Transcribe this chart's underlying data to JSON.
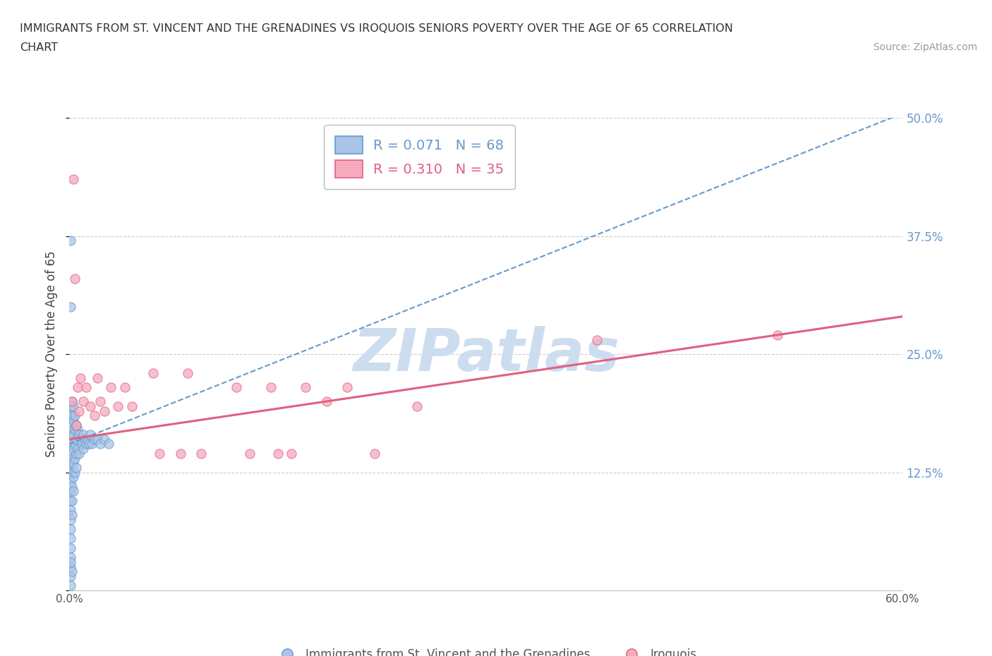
{
  "title_line1": "IMMIGRANTS FROM ST. VINCENT AND THE GRENADINES VS IROQUOIS SENIORS POVERTY OVER THE AGE OF 65 CORRELATION",
  "title_line2": "CHART",
  "source_text": "Source: ZipAtlas.com",
  "ylabel": "Seniors Poverty Over the Age of 65",
  "xmin": 0.0,
  "xmax": 0.6,
  "ymin": 0.0,
  "ymax": 0.5,
  "xticks": [
    0.0,
    0.1,
    0.2,
    0.3,
    0.4,
    0.5,
    0.6
  ],
  "xticklabels": [
    "0.0%",
    "",
    "",
    "",
    "",
    "",
    "60.0%"
  ],
  "yticks": [
    0.0,
    0.125,
    0.25,
    0.375,
    0.5
  ],
  "yticklabels_right": [
    "",
    "12.5%",
    "25.0%",
    "37.5%",
    "50.0%"
  ],
  "blue_color": "#aac4e8",
  "pink_color": "#f5aabe",
  "blue_edge_color": "#6699cc",
  "pink_edge_color": "#e06080",
  "blue_line_color": "#6699cc",
  "pink_line_color": "#e06080",
  "grid_color": "#cccccc",
  "watermark_color": "#ccddef",
  "legend_blue_R": "0.071",
  "legend_blue_N": "68",
  "legend_pink_R": "0.310",
  "legend_pink_N": "35",
  "blue_label": "Immigrants from St. Vincent and the Grenadines",
  "pink_label": "Iroquois",
  "blue_scatter_x": [
    0.001,
    0.001,
    0.001,
    0.001,
    0.001,
    0.001,
    0.001,
    0.001,
    0.001,
    0.001,
    0.001,
    0.001,
    0.001,
    0.001,
    0.001,
    0.001,
    0.001,
    0.001,
    0.001,
    0.001,
    0.002,
    0.002,
    0.002,
    0.002,
    0.002,
    0.002,
    0.002,
    0.002,
    0.002,
    0.003,
    0.003,
    0.003,
    0.003,
    0.003,
    0.003,
    0.003,
    0.004,
    0.004,
    0.004,
    0.004,
    0.004,
    0.005,
    0.005,
    0.005,
    0.005,
    0.006,
    0.006,
    0.007,
    0.007,
    0.008,
    0.009,
    0.01,
    0.01,
    0.011,
    0.012,
    0.013,
    0.014,
    0.015,
    0.016,
    0.018,
    0.02,
    0.022,
    0.025,
    0.028,
    0.001,
    0.001,
    0.001,
    0.002
  ],
  "blue_scatter_y": [
    0.195,
    0.185,
    0.175,
    0.165,
    0.155,
    0.145,
    0.135,
    0.125,
    0.115,
    0.105,
    0.095,
    0.085,
    0.075,
    0.065,
    0.055,
    0.045,
    0.035,
    0.025,
    0.015,
    0.005,
    0.2,
    0.185,
    0.17,
    0.155,
    0.14,
    0.125,
    0.11,
    0.095,
    0.08,
    0.195,
    0.18,
    0.165,
    0.15,
    0.135,
    0.12,
    0.105,
    0.185,
    0.17,
    0.155,
    0.14,
    0.125,
    0.175,
    0.16,
    0.145,
    0.13,
    0.17,
    0.15,
    0.165,
    0.145,
    0.16,
    0.155,
    0.165,
    0.15,
    0.16,
    0.155,
    0.16,
    0.155,
    0.165,
    0.155,
    0.16,
    0.16,
    0.155,
    0.16,
    0.155,
    0.37,
    0.3,
    0.03,
    0.02
  ],
  "pink_scatter_x": [
    0.002,
    0.003,
    0.004,
    0.005,
    0.006,
    0.007,
    0.008,
    0.01,
    0.012,
    0.015,
    0.018,
    0.02,
    0.022,
    0.025,
    0.03,
    0.035,
    0.04,
    0.045,
    0.06,
    0.065,
    0.08,
    0.085,
    0.095,
    0.12,
    0.13,
    0.145,
    0.15,
    0.16,
    0.17,
    0.185,
    0.2,
    0.22,
    0.25,
    0.38,
    0.51
  ],
  "pink_scatter_y": [
    0.2,
    0.435,
    0.33,
    0.175,
    0.215,
    0.19,
    0.225,
    0.2,
    0.215,
    0.195,
    0.185,
    0.225,
    0.2,
    0.19,
    0.215,
    0.195,
    0.215,
    0.195,
    0.23,
    0.145,
    0.145,
    0.23,
    0.145,
    0.215,
    0.145,
    0.215,
    0.145,
    0.145,
    0.215,
    0.2,
    0.215,
    0.145,
    0.195,
    0.265,
    0.27
  ],
  "blue_trendline_x": [
    0.0,
    0.6
  ],
  "blue_trendline_y": [
    0.155,
    0.505
  ],
  "pink_trendline_x": [
    0.0,
    0.6
  ],
  "pink_trendline_y": [
    0.16,
    0.29
  ]
}
